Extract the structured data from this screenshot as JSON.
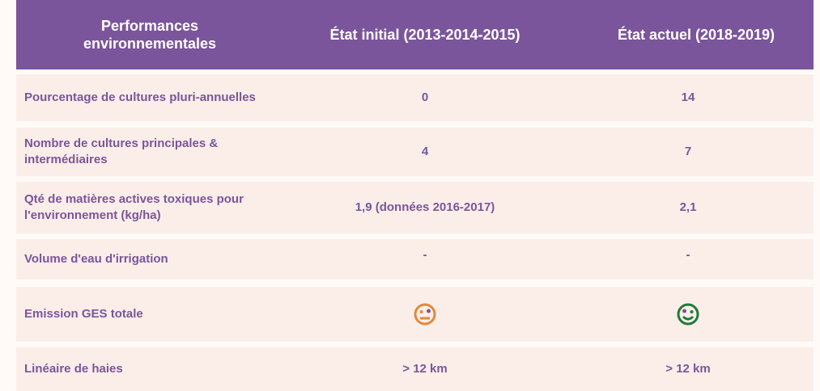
{
  "table": {
    "header": [
      "Performances environnementales",
      "État initial (2013-2014-2015)",
      "État actuel (2018-2019)"
    ],
    "rows": [
      {
        "label": "Pourcentage de cultures pluri-annuelles",
        "initial": "0",
        "actuel": "14"
      },
      {
        "label": "Nombre de cultures principales & intermédiaires",
        "initial": "4",
        "actuel": "7"
      },
      {
        "label": "Qté de matières actives toxiques pour l'environnement (kg/ha)",
        "initial": "1,9 (données 2016-2017)",
        "actuel": "2,1"
      },
      {
        "label": "Volume d'eau d'irrigation",
        "initial": "-",
        "actuel": "-"
      },
      {
        "label": "Emission GES totale"
      },
      {
        "label": "Linéaire de haies",
        "initial": "> 12 km",
        "actuel": "> 12 km"
      }
    ]
  }
}
